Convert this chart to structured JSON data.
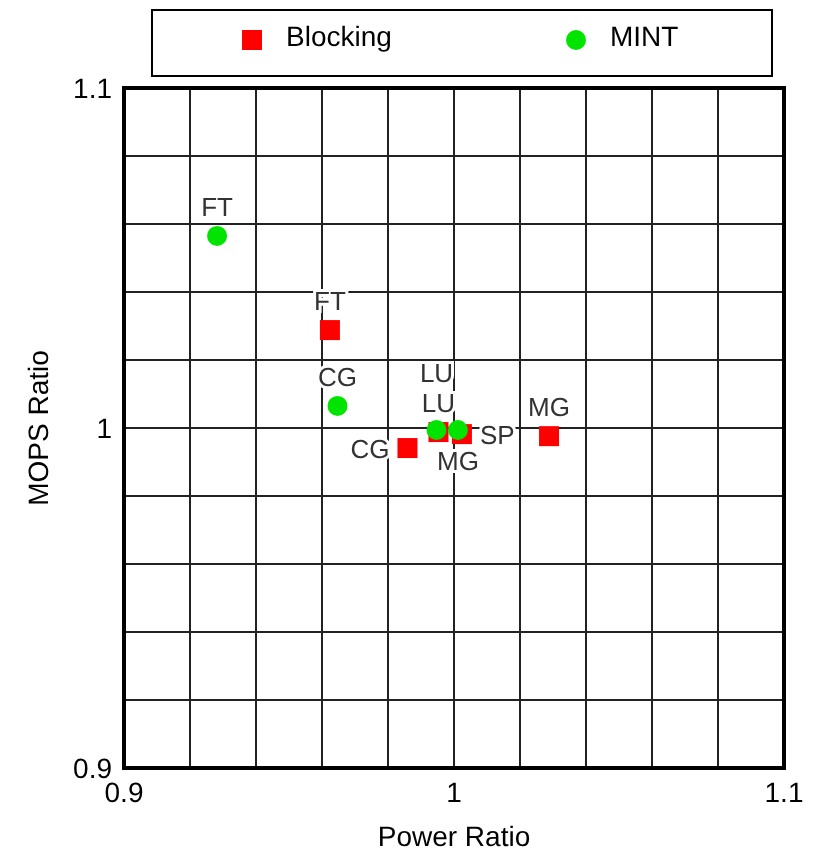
{
  "chart_data": {
    "type": "scatter",
    "xlabel": "Power Ratio",
    "ylabel": "MOPS Ratio",
    "xlim": [
      0.9,
      1.1
    ],
    "ylim": [
      0.9,
      1.1
    ],
    "xticks": [
      0.9,
      {
        "value": 0.92,
        "label": null
      },
      {
        "value": 0.94,
        "label": null
      },
      {
        "value": 0.96,
        "label": null
      },
      {
        "value": 0.98,
        "label": null
      },
      1,
      {
        "value": 1.02,
        "label": null
      },
      {
        "value": 1.04,
        "label": null
      },
      {
        "value": 1.06,
        "label": null
      },
      {
        "value": 1.08,
        "label": null
      },
      1.1
    ],
    "yticks": [
      0.9,
      {
        "value": 0.92,
        "label": null
      },
      {
        "value": 0.94,
        "label": null
      },
      {
        "value": 0.96,
        "label": null
      },
      {
        "value": 0.98,
        "label": null
      },
      1,
      {
        "value": 1.02,
        "label": null
      },
      {
        "value": 1.04,
        "label": null
      },
      {
        "value": 1.06,
        "label": null
      },
      {
        "value": 1.08,
        "label": null
      },
      1.1
    ],
    "grid": true,
    "legend": "top",
    "series": [
      {
        "name": "Blocking",
        "color": "#ff0000",
        "marker": "square",
        "x": [
          0.9624,
          0.9859,
          0.9953,
          1.0024,
          1.0288
        ],
        "values": [
          1.0288,
          0.9941,
          0.9988,
          0.9982,
          0.9976
        ],
        "value_labels": [
          "FT",
          "CG",
          "LU",
          "SP",
          "MG"
        ]
      },
      {
        "name": "MINT",
        "color": "#00e400",
        "marker": "circle",
        "x": [
          0.9282,
          0.9647,
          0.9947,
          1.0012
        ],
        "values": [
          1.0565,
          1.0065,
          0.9994,
          0.9994
        ],
        "value_labels": [
          "FT",
          "CG",
          "LU",
          "MG"
        ]
      }
    ]
  }
}
